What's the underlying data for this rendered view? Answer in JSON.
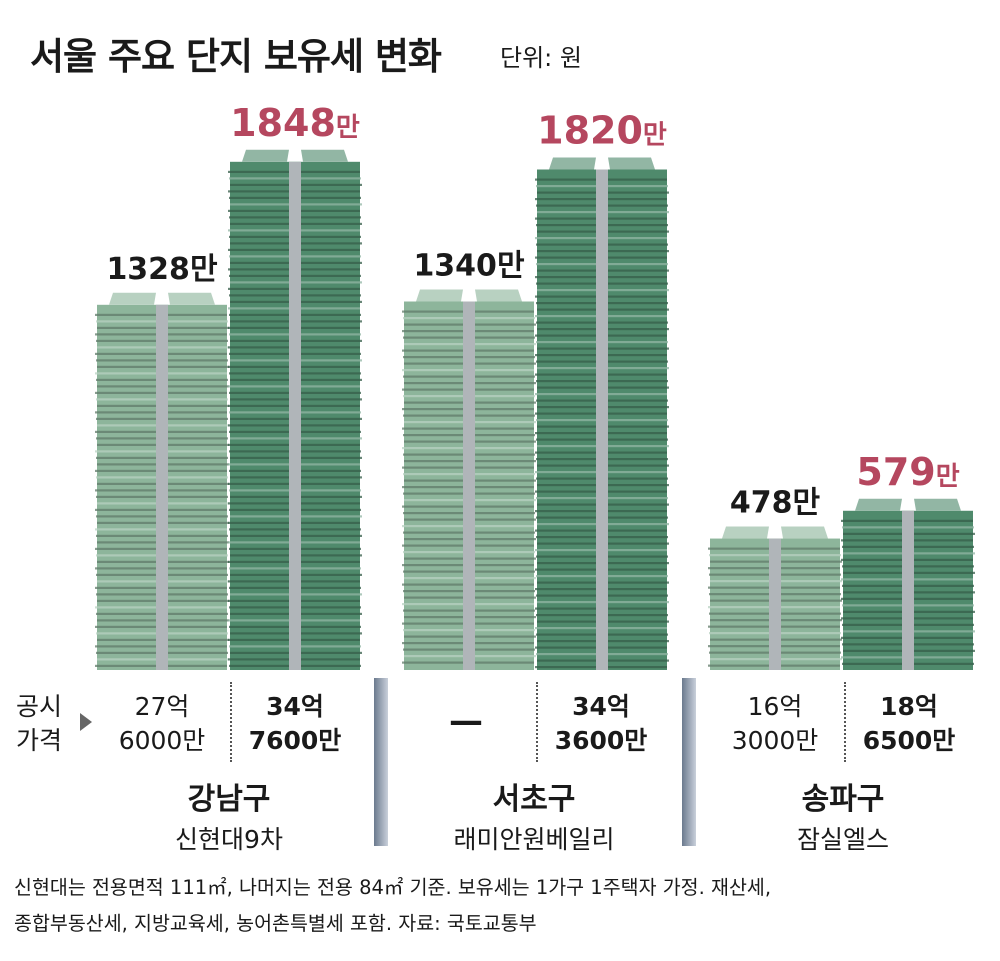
{
  "title": "서울 주요 단지 보유세 변화",
  "unit": "단위: 원",
  "price_caption": [
    "공시",
    "가격"
  ],
  "colors": {
    "old_stack": "#8db59b",
    "new_stack": "#4f8a6c",
    "highlight_label": "#b5475f",
    "band": "#b0b5b9"
  },
  "chart_data": {
    "type": "bar",
    "unit": "원",
    "categories": [
      "강남구",
      "서초구",
      "송파구"
    ],
    "complexes": [
      "신현대9차",
      "래미안원베일리",
      "잠실엘스"
    ],
    "series": [
      {
        "values": [
          1328,
          1340,
          478
        ],
        "labels": [
          "1328만",
          "1340만",
          "478만"
        ]
      },
      {
        "values": [
          1848,
          1820,
          579
        ],
        "labels": [
          "1848만",
          "1820만",
          "579만"
        ]
      }
    ]
  },
  "prices": [
    [
      "27억",
      "6000만"
    ],
    [
      "34억",
      "7600만"
    ],
    [
      "—"
    ],
    [
      "34억",
      "3600만"
    ],
    [
      "16억",
      "3000만"
    ],
    [
      "18억",
      "6500만"
    ]
  ],
  "footnote": [
    "신현대는 전용면적 111㎡, 나머지는 전용 84㎡ 기준. 보유세는 1가구 1주택자 가정. 재산세,",
    "종합부동산세, 지방교육세, 농어촌특별세 포함. 자료: 국토교통부"
  ]
}
